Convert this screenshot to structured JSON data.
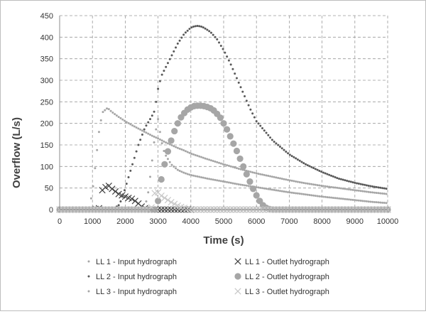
{
  "chart_data": {
    "type": "scatter",
    "xlabel": "Time (s)",
    "ylabel": "Overflow (L/s)",
    "xlim": [
      0,
      10000
    ],
    "ylim": [
      0,
      450
    ],
    "x_ticks": [
      "0",
      "1000",
      "2000",
      "3000",
      "4000",
      "5000",
      "6000",
      "7000",
      "8000",
      "9000",
      "10000"
    ],
    "y_ticks": [
      "0",
      "50",
      "100",
      "150",
      "200",
      "250",
      "300",
      "350",
      "400",
      "450"
    ],
    "grid": true,
    "legend_position": "bottom",
    "series": [
      {
        "name": "LL 1 - Input hydrograph",
        "marker": "dot",
        "color": "#a6a6a6",
        "x": [
          0,
          600,
          900,
          1000,
          1100,
          1200,
          1300,
          1400,
          1450,
          1500,
          1600,
          1800,
          2000,
          2200,
          2400,
          2600,
          2800,
          3000,
          3200,
          3400,
          3600,
          3800,
          4000,
          4500,
          5000,
          5500,
          6000,
          6500,
          7000,
          7500,
          8000,
          8500,
          9000,
          9500,
          10000
        ],
        "y": [
          0,
          0,
          5,
          40,
          110,
          180,
          225,
          232,
          235,
          233,
          226,
          215,
          205,
          196,
          188,
          180,
          172,
          165,
          157,
          150,
          143,
          137,
          130,
          117,
          105,
          94,
          84,
          76,
          68,
          61,
          55,
          50,
          45,
          40,
          36
        ]
      },
      {
        "name": "LL 1 - Outlet hydrograph",
        "marker": "x",
        "color": "#404040",
        "x": [
          0,
          1000,
          1200,
          1300,
          1400,
          1500,
          1600,
          1700,
          1800,
          1900,
          2000,
          2100,
          2200,
          2300,
          2400,
          2500,
          2600,
          2700,
          2800,
          3000,
          4000,
          5000,
          6000,
          7000,
          8000,
          9000,
          10000
        ],
        "y": [
          0,
          0,
          3,
          45,
          52,
          55,
          48,
          42,
          36,
          33,
          30,
          27,
          25,
          20,
          14,
          7,
          3,
          0,
          0,
          0,
          0,
          0,
          0,
          0,
          0,
          0,
          0
        ]
      },
      {
        "name": "LL 2 - Input hydrograph",
        "marker": "dot",
        "color": "#595959",
        "x": [
          0,
          1600,
          1800,
          1900,
          2000,
          2100,
          2200,
          2300,
          2400,
          2600,
          2800,
          2900,
          3000,
          3100,
          3200,
          3300,
          3400,
          3500,
          3600,
          3800,
          4000,
          4100,
          4200,
          4300,
          4400,
          4600,
          4800,
          5000,
          5200,
          5400,
          5600,
          5800,
          6000,
          6500,
          7000,
          7500,
          8000,
          8500,
          9000,
          9500,
          10000
        ],
        "y": [
          0,
          0,
          10,
          25,
          50,
          75,
          100,
          125,
          150,
          190,
          215,
          230,
          280,
          310,
          325,
          340,
          355,
          370,
          385,
          408,
          422,
          425,
          426,
          425,
          422,
          412,
          395,
          370,
          340,
          305,
          270,
          235,
          205,
          160,
          128,
          105,
          87,
          72,
          62,
          54,
          48
        ]
      },
      {
        "name": "LL 2 - Outlet hydrograph",
        "marker": "circle",
        "color": "#a6a6a6",
        "x": [
          0,
          2900,
          3000,
          3100,
          3200,
          3300,
          3400,
          3500,
          3600,
          3700,
          3800,
          3900,
          4000,
          4100,
          4200,
          4300,
          4400,
          4500,
          4600,
          4700,
          4800,
          4900,
          5000,
          5100,
          5200,
          5300,
          5400,
          5500,
          5600,
          5700,
          5800,
          5900,
          6000,
          6100,
          6200,
          6300,
          6400,
          6500,
          6600,
          6700,
          7000,
          8000,
          9000,
          10000
        ],
        "y": [
          0,
          0,
          20,
          70,
          105,
          135,
          160,
          182,
          200,
          214,
          224,
          232,
          237,
          240,
          241,
          241,
          240,
          238,
          235,
          230,
          222,
          213,
          200,
          186,
          170,
          153,
          136,
          118,
          100,
          82,
          65,
          48,
          33,
          20,
          10,
          4,
          1,
          0,
          0,
          0,
          0,
          0,
          0,
          0
        ]
      },
      {
        "name": "LL 3 - Input hydrograph",
        "marker": "dot",
        "color": "#a6a6a6",
        "x": [
          0,
          2400,
          2600,
          2700,
          2800,
          2900,
          3000,
          3100,
          3200,
          3400,
          3600,
          3800,
          4000,
          4500,
          5000,
          5500,
          6000,
          6500,
          7000,
          7500,
          8000,
          8500,
          9000,
          9500,
          10000
        ],
        "y": [
          0,
          0,
          5,
          40,
          100,
          170,
          210,
          160,
          130,
          105,
          92,
          85,
          80,
          72,
          65,
          58,
          52,
          46,
          40,
          35,
          30,
          26,
          22,
          18,
          15
        ]
      },
      {
        "name": "LL 3 - Outlet hydrograph",
        "marker": "x",
        "color": "#c8c8c8",
        "x": [
          0,
          2700,
          2800,
          2900,
          3000,
          3100,
          3200,
          3300,
          3400,
          3500,
          3600,
          3700,
          3800,
          3900,
          4000,
          4100,
          4500,
          5000,
          6000,
          7000,
          8000,
          9000,
          10000
        ],
        "y": [
          0,
          0,
          5,
          38,
          40,
          32,
          27,
          22,
          17,
          13,
          9,
          6,
          4,
          2,
          1,
          0,
          0,
          0,
          0,
          0,
          0,
          0,
          0
        ]
      }
    ]
  }
}
